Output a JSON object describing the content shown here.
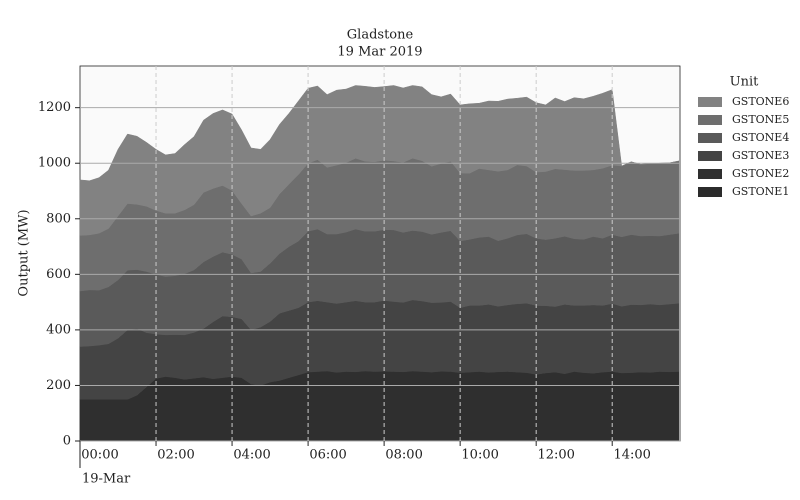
{
  "chart_data": {
    "type": "stacked_area",
    "title": "Gladstone",
    "subtitle": "19 Mar 2019",
    "y_label": "Output (MW)",
    "legend_title": "Unit",
    "legend_position": "right",
    "grid": true,
    "x_date_label": "19-Mar",
    "xlim": [
      "00:00",
      "15:47"
    ],
    "xticks": [
      "00:00",
      "02:00",
      "04:00",
      "06:00",
      "08:00",
      "10:00",
      "12:00",
      "14:00"
    ],
    "ylim": [
      0,
      1350
    ],
    "yticks": [
      0,
      200,
      400,
      600,
      800,
      1000,
      1200
    ],
    "x": [
      "00:00",
      "00:15",
      "00:30",
      "00:45",
      "01:00",
      "01:15",
      "01:30",
      "01:45",
      "02:00",
      "02:15",
      "02:30",
      "02:45",
      "03:00",
      "03:15",
      "03:30",
      "03:45",
      "04:00",
      "04:15",
      "04:30",
      "04:45",
      "05:00",
      "05:15",
      "05:30",
      "05:45",
      "06:00",
      "06:15",
      "06:30",
      "06:45",
      "07:00",
      "07:15",
      "07:30",
      "07:45",
      "08:00",
      "08:15",
      "08:30",
      "08:45",
      "09:00",
      "09:15",
      "09:30",
      "09:45",
      "10:00",
      "10:15",
      "10:30",
      "10:45",
      "11:00",
      "11:15",
      "11:30",
      "11:45",
      "12:00",
      "12:15",
      "12:30",
      "12:45",
      "13:00",
      "13:15",
      "13:30",
      "13:45",
      "14:00",
      "14:15",
      "14:30",
      "14:45",
      "15:00",
      "15:15",
      "15:30",
      "15:45"
    ],
    "series": [
      {
        "name": "GSTONE1",
        "color": "#2b2b2b",
        "values": [
          0,
          0,
          0,
          0,
          0,
          0,
          0,
          0,
          0,
          0,
          0,
          0,
          0,
          0,
          0,
          0,
          0,
          0,
          0,
          0,
          0,
          0,
          0,
          0,
          0,
          0,
          0,
          0,
          0,
          0,
          0,
          0,
          0,
          0,
          0,
          0,
          0,
          0,
          0,
          0,
          0,
          0,
          0,
          0,
          0,
          0,
          0,
          0,
          0,
          0,
          0,
          0,
          0,
          0,
          0,
          0,
          0,
          0,
          0,
          0,
          0,
          0,
          0,
          0
        ]
      },
      {
        "name": "GSTONE2",
        "color": "#2f2f2f",
        "values": [
          150,
          150,
          150,
          150,
          150,
          150,
          165,
          195,
          225,
          232,
          228,
          222,
          226,
          230,
          224,
          228,
          232,
          228,
          205,
          200,
          212,
          218,
          228,
          238,
          248,
          250,
          252,
          247,
          250,
          249,
          252,
          250,
          251,
          250,
          249,
          252,
          250,
          248,
          251,
          250,
          246,
          248,
          250,
          247,
          249,
          250,
          248,
          246,
          240,
          245,
          248,
          242,
          250,
          246,
          244,
          248,
          250,
          245,
          246,
          248,
          247,
          250,
          249,
          250
        ]
      },
      {
        "name": "GSTONE3",
        "color": "#444444",
        "values": [
          190,
          192,
          195,
          200,
          220,
          250,
          240,
          195,
          160,
          150,
          155,
          160,
          165,
          175,
          205,
          222,
          215,
          212,
          195,
          210,
          218,
          242,
          242,
          242,
          252,
          255,
          248,
          248,
          250,
          256,
          248,
          250,
          255,
          252,
          250,
          256,
          254,
          250,
          248,
          252,
          234,
          240,
          238,
          245,
          236,
          240,
          246,
          250,
          248,
          242,
          236,
          250,
          238,
          242,
          246,
          240,
          245,
          240,
          245,
          242,
          246,
          240,
          244,
          246
        ]
      },
      {
        "name": "GSTONE4",
        "color": "#5a5a5a",
        "values": [
          200,
          202,
          198,
          205,
          210,
          215,
          212,
          220,
          215,
          210,
          212,
          220,
          225,
          240,
          235,
          230,
          225,
          215,
          205,
          200,
          210,
          215,
          230,
          240,
          255,
          258,
          245,
          250,
          252,
          258,
          255,
          255,
          255,
          258,
          252,
          250,
          250,
          246,
          252,
          255,
          240,
          238,
          245,
          244,
          236,
          240,
          248,
          250,
          242,
          238,
          246,
          245,
          240,
          238,
          246,
          242,
          248,
          250,
          252,
          248,
          246,
          248,
          250,
          252
        ]
      },
      {
        "name": "GSTONE5",
        "color": "#6e6e6e",
        "values": [
          200,
          198,
          205,
          210,
          230,
          240,
          235,
          235,
          230,
          228,
          225,
          230,
          235,
          250,
          245,
          240,
          230,
          200,
          205,
          210,
          200,
          215,
          225,
          240,
          245,
          250,
          240,
          248,
          250,
          255,
          252,
          250,
          250,
          248,
          252,
          260,
          255,
          245,
          248,
          250,
          245,
          238,
          248,
          240,
          250,
          246,
          252,
          244,
          238,
          245,
          250,
          240,
          246,
          248,
          240,
          252,
          250,
          255,
          262,
          258,
          260,
          262,
          258,
          260
        ]
      },
      {
        "name": "GSTONE6",
        "color": "#828282",
        "values": [
          200,
          195,
          200,
          210,
          240,
          250,
          245,
          230,
          220,
          210,
          215,
          235,
          245,
          260,
          270,
          272,
          275,
          265,
          245,
          230,
          245,
          250,
          255,
          265,
          270,
          265,
          262,
          270,
          265,
          262,
          270,
          268,
          265,
          272,
          268,
          262,
          266,
          258,
          240,
          242,
          245,
          250,
          235,
          248,
          252,
          255,
          240,
          248,
          250,
          240,
          255,
          245,
          262,
          258,
          265,
          270,
          272,
          0,
          0,
          0,
          0,
          0,
          0,
          0
        ]
      }
    ]
  }
}
